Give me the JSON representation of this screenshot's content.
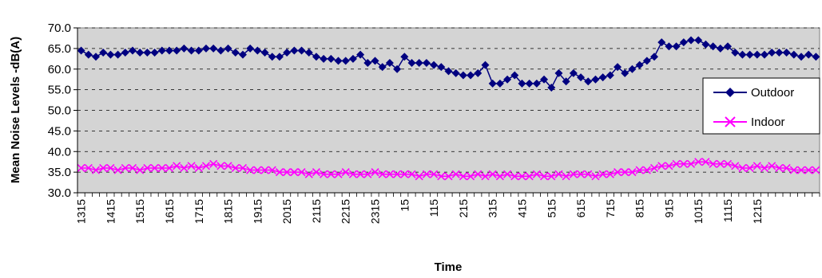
{
  "chart_data": {
    "type": "line",
    "xlabel": "Time",
    "ylabel": "Mean Noise Levels -dB(A)",
    "ylim": [
      30,
      70
    ],
    "y_tick_labels": [
      "30.0",
      "35.0",
      "40.0",
      "45.0",
      "50.0",
      "55.0",
      "60.0",
      "65.0",
      "70.0"
    ],
    "x_tick_labels": [
      "1315",
      "1415",
      "1515",
      "1615",
      "1715",
      "1815",
      "1915",
      "2015",
      "2115",
      "2215",
      "2315",
      "15",
      "115",
      "215",
      "315",
      "415",
      "515",
      "615",
      "715",
      "815",
      "915",
      "1015",
      "1115",
      "1215"
    ],
    "points_per_label": 4,
    "grid": true,
    "legend_position": "right",
    "series": [
      {
        "name": "Outdoor",
        "color": "#000080",
        "marker": "diamond",
        "values": [
          64.5,
          63.5,
          63.0,
          64.0,
          63.5,
          63.5,
          64.0,
          64.5,
          64.0,
          64.0,
          64.0,
          64.5,
          64.5,
          64.5,
          65.0,
          64.5,
          64.5,
          65.0,
          65.0,
          64.5,
          65.0,
          64.0,
          63.5,
          65.0,
          64.5,
          64.0,
          63.0,
          63.0,
          64.0,
          64.5,
          64.5,
          64.0,
          63.0,
          62.5,
          62.5,
          62.0,
          62.0,
          62.5,
          63.5,
          61.5,
          62.0,
          60.5,
          61.5,
          60.0,
          63.0,
          61.5,
          61.5,
          61.5,
          61.0,
          60.5,
          59.5,
          59.0,
          58.5,
          58.5,
          59.0,
          61.0,
          56.5,
          56.5,
          57.5,
          58.5,
          56.5,
          56.5,
          56.5,
          57.5,
          55.5,
          59.0,
          57.0,
          59.0,
          58.0,
          57.0,
          57.5,
          58.0,
          58.5,
          60.5,
          59.0,
          60.0,
          61.0,
          62.0,
          63.0,
          66.5,
          65.5,
          65.5,
          66.5,
          67.0,
          67.0,
          66.0,
          65.5,
          65.0,
          65.5,
          64.0,
          63.5,
          63.5,
          63.5,
          63.5,
          64.0,
          64.0,
          64.0,
          63.5,
          63.0,
          63.5,
          63.0
        ]
      },
      {
        "name": "Indoor",
        "color": "#ff00ff",
        "marker": "x",
        "values": [
          36.0,
          36.0,
          35.5,
          36.0,
          36.0,
          35.5,
          36.0,
          36.0,
          35.5,
          36.0,
          36.0,
          36.0,
          36.0,
          36.5,
          36.0,
          36.5,
          36.0,
          36.5,
          37.0,
          36.5,
          36.5,
          36.0,
          36.0,
          35.5,
          35.5,
          35.5,
          35.5,
          35.0,
          35.0,
          35.0,
          35.0,
          34.5,
          35.0,
          34.5,
          34.5,
          34.5,
          35.0,
          34.5,
          34.5,
          34.5,
          35.0,
          34.5,
          34.5,
          34.5,
          34.5,
          34.5,
          34.0,
          34.5,
          34.5,
          34.0,
          34.0,
          34.5,
          34.0,
          34.0,
          34.5,
          34.0,
          34.5,
          34.0,
          34.5,
          34.0,
          34.0,
          34.0,
          34.5,
          34.0,
          34.0,
          34.5,
          34.0,
          34.5,
          34.5,
          34.5,
          34.0,
          34.5,
          34.5,
          35.0,
          35.0,
          35.0,
          35.5,
          35.5,
          36.0,
          36.5,
          36.5,
          37.0,
          37.0,
          37.0,
          37.5,
          37.5,
          37.0,
          37.0,
          37.0,
          36.5,
          36.0,
          36.0,
          36.5,
          36.0,
          36.5,
          36.0,
          36.0,
          35.5,
          35.5,
          35.5,
          35.5
        ]
      }
    ]
  }
}
